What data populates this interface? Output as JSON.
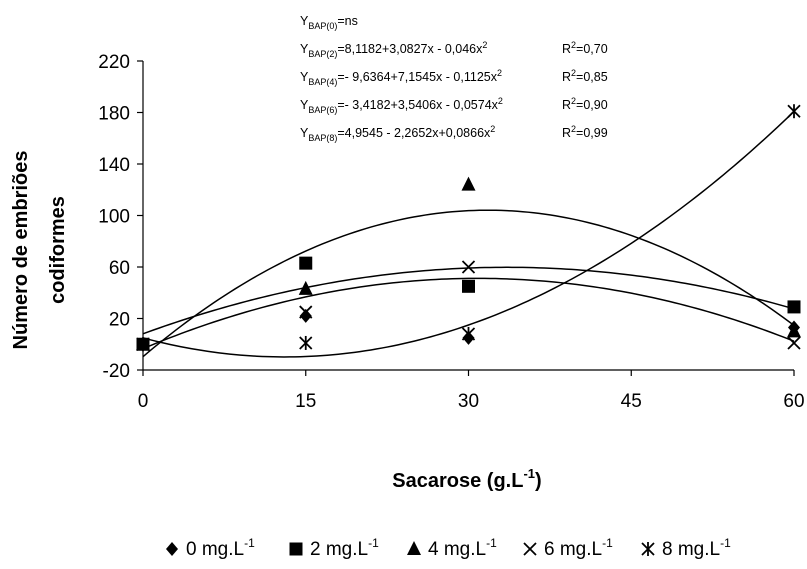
{
  "chart_data": {
    "type": "scatter",
    "xlabel": "Sacarose (g.L-1)",
    "xlabel_main": "Sacarose (g.L",
    "xlabel_sup": "-1",
    "xlabel_end": ")",
    "ylabel_line1": "Número de embriões",
    "ylabel_line2": "codiformes",
    "x_ticks": [
      0,
      15,
      30,
      45,
      60
    ],
    "y_ticks": [
      -20,
      20,
      60,
      100,
      140,
      180,
      220
    ],
    "xlim": [
      0,
      60
    ],
    "ylim": [
      -20,
      220
    ],
    "grid": false,
    "legend_position": "bottom",
    "series": [
      {
        "name": "0 mg.L-1",
        "name_main": "0 mg.L",
        "name_sup": "-1",
        "marker": "diamond",
        "x": [
          0,
          15,
          30,
          60
        ],
        "y": [
          0,
          22,
          5,
          13
        ]
      },
      {
        "name": "2 mg.L-1",
        "name_main": "2 mg.L",
        "name_sup": "-1",
        "marker": "square",
        "x": [
          0,
          15,
          30,
          60
        ],
        "y": [
          0,
          63,
          45,
          29
        ]
      },
      {
        "name": "4 mg.L-1",
        "name_main": "4 mg.L",
        "name_sup": "-1",
        "marker": "triangle",
        "x": [
          0,
          15,
          30,
          60
        ],
        "y": [
          0,
          43,
          124,
          10
        ]
      },
      {
        "name": "6 mg.L-1",
        "name_main": "6 mg.L",
        "name_sup": "-1",
        "marker": "x",
        "x": [
          0,
          15,
          30,
          60
        ],
        "y": [
          0,
          25,
          60,
          1
        ]
      },
      {
        "name": "8 mg.L-1",
        "name_main": "8 mg.L",
        "name_sup": "-1",
        "marker": "asterisk",
        "x": [
          0,
          15,
          30,
          60
        ],
        "y": [
          0,
          1,
          8,
          181
        ]
      }
    ],
    "fitted_curves": [
      {
        "series": "2 mg.L-1",
        "a": 8.1182,
        "b": 3.0827,
        "c": -0.046
      },
      {
        "series": "4 mg.L-1",
        "a": -9.6364,
        "b": 7.1545,
        "c": -0.1125
      },
      {
        "series": "6 mg.L-1",
        "a": -3.4182,
        "b": 3.5406,
        "c": -0.0574
      },
      {
        "series": "8 mg.L-1",
        "a": 4.9545,
        "b": -2.2652,
        "c": 0.0866
      }
    ],
    "equations": [
      {
        "y": "Y",
        "sub": "BAP(0)",
        "rhs": "=ns",
        "r2_label": "",
        "r2_value": ""
      },
      {
        "y": "Y",
        "sub": "BAP(2)",
        "rhs": "=8,1182+3,0827x - 0,046x",
        "r2_label": "R",
        "r2_value": "=0,70"
      },
      {
        "y": "Y",
        "sub": "BAP(4)",
        "rhs": "=- 9,6364+7,1545x - 0,1125x",
        "r2_label": "R",
        "r2_value": "=0,85"
      },
      {
        "y": "Y",
        "sub": "BAP(6)",
        "rhs": "=- 3,4182+3,5406x - 0,0574x",
        "r2_label": "R",
        "r2_value": "=0,90"
      },
      {
        "y": "Y",
        "sub": "BAP(8)",
        "rhs": "=4,9545 - 2,2652x+0,0866x",
        "r2_label": "R",
        "r2_value": "=0,99"
      }
    ],
    "colors": {
      "marks": "#000000",
      "background": "#ffffff"
    }
  }
}
